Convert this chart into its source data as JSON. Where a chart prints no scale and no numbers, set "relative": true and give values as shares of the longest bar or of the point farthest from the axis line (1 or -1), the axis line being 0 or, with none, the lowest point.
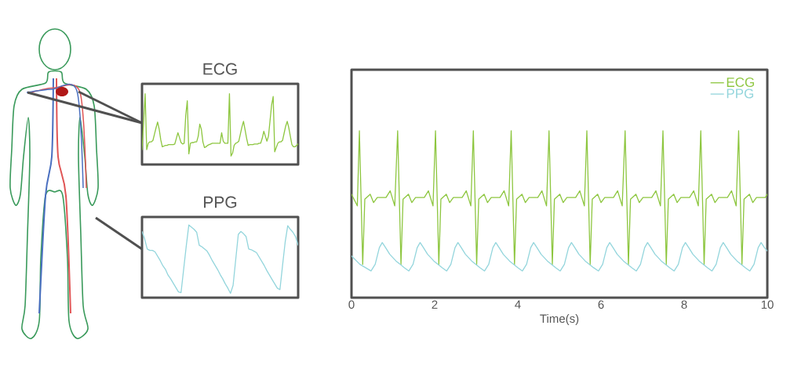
{
  "chart_data": [
    {
      "type": "line",
      "title": "ECG",
      "relative": true,
      "categories": [
        null,
        null,
        null,
        null,
        null,
        null,
        null,
        null,
        null,
        null,
        null,
        null,
        null,
        null,
        null,
        null,
        null,
        null,
        null,
        null,
        null,
        null,
        null,
        null,
        null,
        null,
        null,
        null,
        null,
        null,
        null,
        null,
        null,
        null,
        null,
        null,
        null,
        null,
        null,
        null,
        null,
        null,
        null,
        null,
        null,
        null,
        null,
        null,
        null,
        null,
        null,
        null,
        null,
        null,
        null,
        null,
        null,
        null,
        null,
        null,
        null,
        null,
        null,
        null,
        null,
        null,
        null,
        null,
        null,
        null,
        null,
        null,
        null,
        null,
        null,
        null,
        null,
        null,
        null,
        null,
        null,
        null,
        null,
        null,
        null,
        null,
        null,
        null,
        null,
        null,
        null,
        null,
        null,
        null,
        null,
        null,
        null,
        null,
        null,
        null,
        null
      ],
      "series": [
        {
          "color": "#8dc63f",
          "values": [
            0.21,
            0.58,
            1.0,
            0.21,
            0.3,
            0.32,
            0.32,
            0.34,
            0.43,
            0.52,
            0.6,
            0.5,
            0.35,
            0.25,
            0.26,
            0.27,
            0.27,
            0.28,
            0.28,
            0.28,
            0.28,
            0.29,
            0.37,
            0.45,
            0.38,
            0.31,
            0.29,
            0.3,
            0.69,
            0.9,
            0.15,
            0.3,
            0.31,
            0.31,
            0.32,
            0.32,
            0.4,
            0.57,
            0.5,
            0.32,
            0.24,
            0.25,
            0.27,
            0.28,
            0.29,
            0.3,
            0.3,
            0.3,
            0.3,
            0.3,
            0.3,
            0.45,
            0.33,
            0.3,
            0.3,
            0.3,
            1.0,
            0.12,
            0.16,
            0.27,
            0.3,
            0.31,
            0.33,
            0.43,
            0.53,
            0.61,
            0.49,
            0.37,
            0.27,
            0.28,
            0.28,
            0.28,
            0.29,
            0.29,
            0.29,
            0.3,
            0.3,
            0.37,
            0.47,
            0.4,
            0.33,
            0.4,
            0.62,
            0.84,
            0.96,
            0.18,
            0.24,
            0.3,
            0.32,
            0.32,
            0.34,
            0.44,
            0.54,
            0.61,
            0.52,
            0.4,
            0.28,
            0.25,
            0.25,
            0.27,
            0.29
          ]
        }
      ]
    },
    {
      "type": "line",
      "title": "PPG",
      "relative": true,
      "categories": [
        null,
        null,
        null,
        null,
        null,
        null,
        null,
        null,
        null,
        null,
        null,
        null,
        null,
        null,
        null,
        null,
        null,
        null,
        null,
        null,
        null,
        null,
        null,
        null,
        null,
        null,
        null,
        null,
        null,
        null,
        null,
        null,
        null,
        null,
        null,
        null,
        null,
        null,
        null,
        null,
        null,
        null,
        null,
        null,
        null,
        null,
        null,
        null,
        null,
        null,
        null,
        null,
        null,
        null,
        null,
        null,
        null,
        null,
        null,
        null,
        null
      ],
      "series": [
        {
          "color": "#93d5dc",
          "values": [
            0.91,
            0.81,
            0.67,
            0.65,
            0.65,
            0.63,
            0.57,
            0.51,
            0.44,
            0.39,
            0.31,
            0.26,
            0.2,
            0.14,
            0.08,
            0.07,
            0.39,
            0.71,
            1.0,
            0.97,
            0.94,
            0.9,
            0.72,
            0.7,
            0.67,
            0.64,
            0.58,
            0.51,
            0.45,
            0.39,
            0.32,
            0.26,
            0.19,
            0.13,
            0.06,
            0.17,
            0.52,
            0.87,
            0.91,
            0.88,
            0.84,
            0.67,
            0.66,
            0.64,
            0.62,
            0.56,
            0.5,
            0.44,
            0.37,
            0.31,
            0.25,
            0.19,
            0.13,
            0.11,
            0.44,
            0.76,
            0.99,
            0.94,
            0.9,
            0.84,
            0.72
          ]
        }
      ]
    },
    {
      "type": "line",
      "relative": true,
      "xlabel": "Time(s)",
      "xlim": [
        0,
        10
      ],
      "xticks": [
        0,
        2,
        4,
        6,
        8,
        10
      ],
      "legend": "top right",
      "series": [
        {
          "name": "ECG",
          "color": "#8dc63f",
          "x": [
            0,
            0.14,
            0.19,
            0.27,
            0.32,
            0.45,
            0.53,
            0.62,
            0.83,
            0.93,
            1.04,
            1.11,
            1.19,
            1.24,
            1.37,
            1.45,
            1.54,
            1.75,
            1.85,
            1.96,
            2.02,
            2.1,
            2.15,
            2.28,
            2.36,
            2.45,
            2.66,
            2.76,
            2.87,
            2.93,
            3.01,
            3.06,
            3.19,
            3.27,
            3.36,
            3.57,
            3.67,
            3.78,
            3.84,
            3.92,
            3.97,
            4.1,
            4.18,
            4.27,
            4.48,
            4.58,
            4.69,
            4.75,
            4.83,
            4.88,
            5.01,
            5.09,
            5.18,
            5.39,
            5.49,
            5.6,
            5.66,
            5.74,
            5.79,
            5.92,
            6,
            6.09,
            6.3,
            6.4,
            6.51,
            6.58,
            6.66,
            6.71,
            6.84,
            6.92,
            7.01,
            7.22,
            7.32,
            7.43,
            7.49,
            7.57,
            7.62,
            7.75,
            7.83,
            7.92,
            8.13,
            8.23,
            8.34,
            8.4,
            8.48,
            8.53,
            8.66,
            8.74,
            8.83,
            9.04,
            9.14,
            9.25,
            9.31,
            9.39,
            9.44,
            9.57,
            9.65,
            9.74,
            9.95,
            10
          ],
          "values": [
            0.62,
            0.55,
            1,
            0.2,
            0.59,
            0.62,
            0.57,
            0.6,
            0.6,
            0.64,
            0.55,
            1,
            0.2,
            0.59,
            0.62,
            0.57,
            0.6,
            0.6,
            0.64,
            0.55,
            1,
            0.2,
            0.59,
            0.62,
            0.57,
            0.6,
            0.6,
            0.64,
            0.55,
            1,
            0.2,
            0.59,
            0.62,
            0.57,
            0.6,
            0.6,
            0.64,
            0.55,
            1,
            0.2,
            0.59,
            0.62,
            0.57,
            0.6,
            0.6,
            0.64,
            0.55,
            1,
            0.2,
            0.59,
            0.62,
            0.57,
            0.6,
            0.6,
            0.64,
            0.55,
            1,
            0.2,
            0.59,
            0.62,
            0.57,
            0.6,
            0.6,
            0.64,
            0.55,
            1,
            0.2,
            0.59,
            0.62,
            0.57,
            0.6,
            0.6,
            0.64,
            0.55,
            1,
            0.2,
            0.59,
            0.62,
            0.57,
            0.6,
            0.6,
            0.64,
            0.55,
            1,
            0.2,
            0.59,
            0.62,
            0.57,
            0.6,
            0.6,
            0.64,
            0.55,
            1,
            0.2,
            0.59,
            0.62,
            0.57,
            0.6,
            0.6,
            0.62
          ]
        },
        {
          "name": "PPG",
          "color": "#93d5dc",
          "x": [
            0,
            0.2,
            0.47,
            0.57,
            0.67,
            0.74,
            0.82,
            0.92,
            1.07,
            1.27,
            1.38,
            1.48,
            1.58,
            1.65,
            1.73,
            1.83,
            1.98,
            2.18,
            2.29,
            2.39,
            2.49,
            2.56,
            2.64,
            2.74,
            2.89,
            3.09,
            3.2,
            3.3,
            3.4,
            3.47,
            3.55,
            3.65,
            3.8,
            4,
            4.11,
            4.21,
            4.31,
            4.38,
            4.46,
            4.56,
            4.71,
            4.91,
            5.02,
            5.12,
            5.22,
            5.29,
            5.37,
            5.47,
            5.62,
            5.82,
            5.94,
            6.04,
            6.14,
            6.21,
            6.29,
            6.39,
            6.54,
            6.74,
            6.85,
            6.95,
            7.05,
            7.12,
            7.2,
            7.3,
            7.45,
            7.65,
            7.76,
            7.86,
            7.96,
            8.03,
            8.11,
            8.21,
            8.36,
            8.56,
            8.67,
            8.77,
            8.87,
            8.94,
            9.02,
            9.12,
            9.27,
            9.47,
            9.58,
            9.68,
            9.78,
            9.85,
            9.93,
            10
          ],
          "values": [
            0.25,
            0.2,
            0.16,
            0.2,
            0.3,
            0.33,
            0.3,
            0.26,
            0.22,
            0.18,
            0.16,
            0.2,
            0.3,
            0.33,
            0.3,
            0.26,
            0.22,
            0.18,
            0.16,
            0.2,
            0.3,
            0.33,
            0.3,
            0.26,
            0.22,
            0.18,
            0.16,
            0.2,
            0.3,
            0.33,
            0.3,
            0.26,
            0.22,
            0.18,
            0.16,
            0.2,
            0.3,
            0.33,
            0.3,
            0.26,
            0.22,
            0.18,
            0.16,
            0.2,
            0.3,
            0.33,
            0.3,
            0.26,
            0.22,
            0.18,
            0.16,
            0.2,
            0.3,
            0.33,
            0.3,
            0.26,
            0.22,
            0.18,
            0.16,
            0.2,
            0.3,
            0.33,
            0.3,
            0.26,
            0.22,
            0.18,
            0.16,
            0.2,
            0.3,
            0.33,
            0.3,
            0.26,
            0.22,
            0.18,
            0.16,
            0.2,
            0.3,
            0.33,
            0.3,
            0.26,
            0.22,
            0.18,
            0.16,
            0.2,
            0.3,
            0.33,
            0.3,
            0.28
          ]
        }
      ]
    }
  ]
}
